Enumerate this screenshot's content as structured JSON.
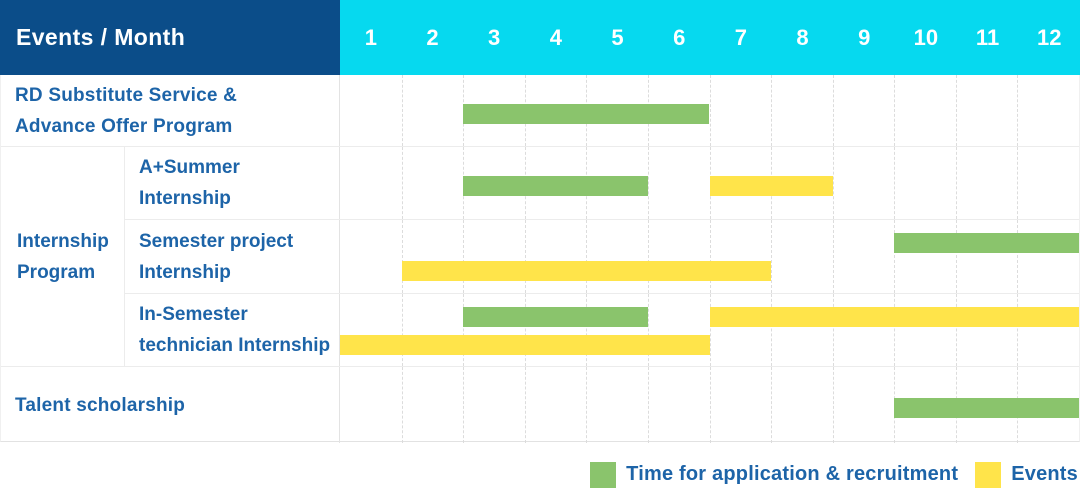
{
  "header": {
    "title": "Events / Month",
    "months": [
      "1",
      "2",
      "3",
      "4",
      "5",
      "6",
      "7",
      "8",
      "9",
      "10",
      "11",
      "12"
    ]
  },
  "colors": {
    "navy_header": "#0b4d89",
    "cyan_header": "#06d9ef",
    "recruitment": "#8ac46c",
    "events": "#ffe44a",
    "label_text": "#1d64a8",
    "header_text": "#ffffff"
  },
  "group": {
    "label_lines": [
      "Internship",
      "Program"
    ]
  },
  "legend": [
    {
      "key": "recruitment",
      "label": "Time for application & recruitment",
      "color": "#8ac46c"
    },
    {
      "key": "events",
      "label": "Events",
      "color": "#ffe44a"
    }
  ],
  "chart_data": {
    "type": "gantt",
    "title": "Events / Month",
    "x_axis": {
      "label": "Month",
      "ticks": [
        1,
        2,
        3,
        4,
        5,
        6,
        7,
        8,
        9,
        10,
        11,
        12
      ],
      "range": [
        1,
        12
      ]
    },
    "series_legend": [
      {
        "key": "recruitment",
        "label": "Time for application & recruitment",
        "color": "#8ac46c"
      },
      {
        "key": "events",
        "label": "Events",
        "color": "#ffe44a"
      }
    ],
    "rows": [
      {
        "id": "rd-substitute-service",
        "group": "",
        "label": "RD Substitute Service & Advance Offer Program",
        "label_lines": [
          "RD Substitute Service &",
          "Advance Offer Program"
        ],
        "bars": [
          {
            "series": "recruitment",
            "start_month": 3,
            "end_month": 6,
            "lane": "single"
          }
        ]
      },
      {
        "id": "a-plus-summer-internship",
        "group": "Internship Program",
        "label": "A+Summer Internship",
        "label_lines": [
          "A+Summer",
          "Internship"
        ],
        "bars": [
          {
            "series": "recruitment",
            "start_month": 3,
            "end_month": 5,
            "lane": "single"
          },
          {
            "series": "events",
            "start_month": 7,
            "end_month": 8,
            "lane": "single"
          }
        ]
      },
      {
        "id": "semester-project-internship",
        "group": "Internship Program",
        "label": "Semester project Internship",
        "label_lines": [
          "Semester project",
          "Internship"
        ],
        "bars": [
          {
            "series": "recruitment",
            "start_month": 10,
            "end_month": 12,
            "lane": "top"
          },
          {
            "series": "events",
            "start_month": 2,
            "end_month": 7,
            "lane": "bottom"
          }
        ]
      },
      {
        "id": "in-semester-technician-internship",
        "group": "Internship Program",
        "label": "In-Semester technician Internship",
        "label_lines": [
          "In-Semester",
          "technician Internship"
        ],
        "bars": [
          {
            "series": "recruitment",
            "start_month": 3,
            "end_month": 5,
            "lane": "top"
          },
          {
            "series": "events",
            "start_month": 7,
            "end_month": 12,
            "lane": "top"
          },
          {
            "series": "events",
            "start_month": 1,
            "end_month": 6,
            "lane": "bottom"
          }
        ]
      },
      {
        "id": "talent-scholarship",
        "group": "",
        "label": "Talent scholarship",
        "label_lines": [
          "Talent scholarship"
        ],
        "bars": [
          {
            "series": "recruitment",
            "start_month": 10,
            "end_month": 12,
            "lane": "single"
          }
        ]
      }
    ]
  }
}
